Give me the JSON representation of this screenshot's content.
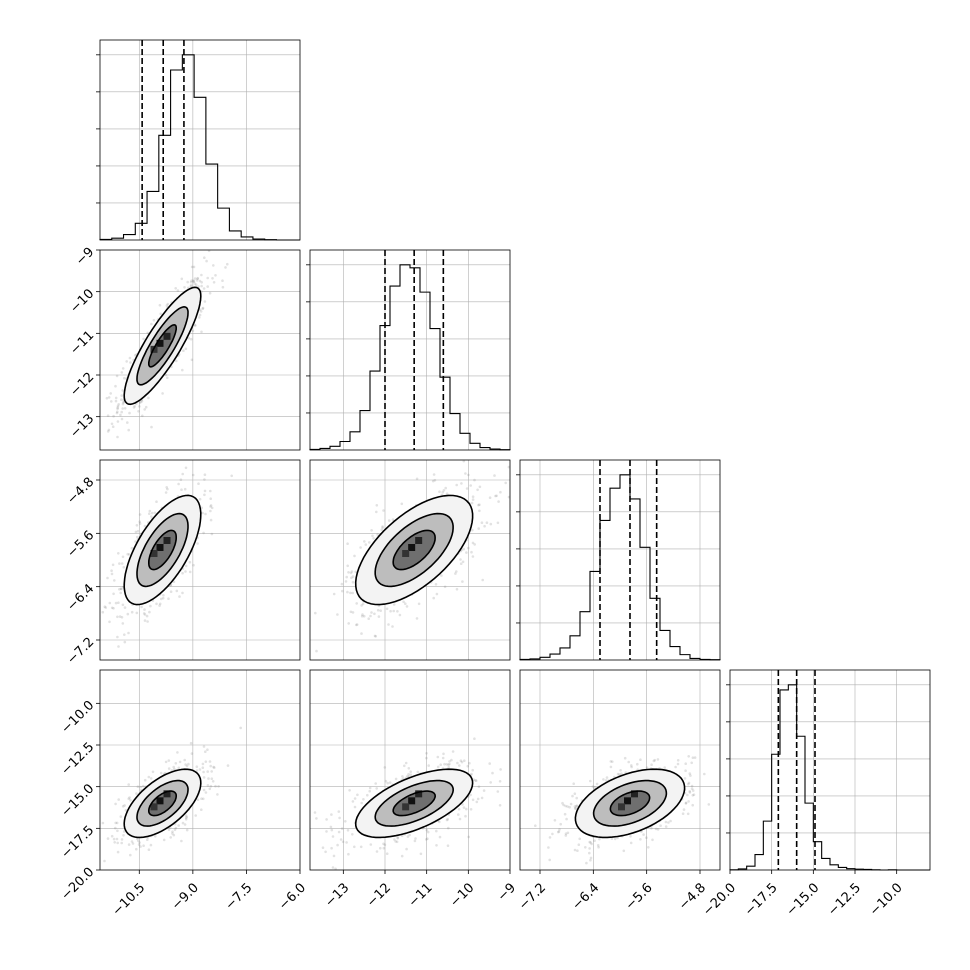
{
  "chart_data": {
    "type": "scatter",
    "title": "",
    "grid": true,
    "parameters": [
      {
        "index": 0,
        "range": [
          -11.6,
          -6.0
        ],
        "ticks": [
          -10.5,
          -9.0,
          -7.5,
          -6.0
        ],
        "tick_labels": [
          "−10.5",
          "−9.0",
          "−7.5",
          "−6.0"
        ],
        "mean": -9.85,
        "sd": 0.55,
        "quantiles": [
          -10.42,
          -9.83,
          -9.25
        ],
        "hist_counts": [
          2,
          6,
          18,
          55,
          160,
          345,
          560,
          610,
          470,
          250,
          105,
          30,
          10,
          3,
          1,
          0,
          0
        ]
      },
      {
        "index": 1,
        "range": [
          -13.8,
          -9.0
        ],
        "ticks": [
          -13,
          -12,
          -11,
          -10,
          -9
        ],
        "tick_labels": [
          "−13",
          "−12",
          "−11",
          "−10",
          "−9"
        ],
        "mean": -11.3,
        "sd": 0.72,
        "quantiles": [
          -12.0,
          -11.3,
          -10.6
        ],
        "hist_counts": [
          2,
          5,
          12,
          28,
          60,
          130,
          260,
          410,
          540,
          610,
          600,
          520,
          400,
          240,
          120,
          55,
          22,
          8,
          3,
          1
        ]
      },
      {
        "index": 2,
        "range": [
          -7.5,
          -4.5
        ],
        "ticks": [
          -7.2,
          -6.4,
          -5.6,
          -4.8
        ],
        "tick_labels": [
          "−7.2",
          "−6.4",
          "−5.6",
          "−4.8"
        ],
        "mean": -5.85,
        "sd": 0.42,
        "quantiles": [
          -6.3,
          -5.85,
          -5.45
        ],
        "hist_counts": [
          2,
          4,
          10,
          22,
          45,
          90,
          180,
          330,
          520,
          640,
          690,
          600,
          420,
          230,
          110,
          50,
          20,
          6,
          2,
          1
        ]
      },
      {
        "index": 3,
        "range": [
          -20.0,
          -8.0
        ],
        "ticks": [
          -20.0,
          -17.5,
          -15.0,
          -12.5,
          -10.0
        ],
        "tick_labels": [
          "−20.0",
          "−17.5",
          "−15.0",
          "−12.5",
          "−10.0"
        ],
        "mean": -16.0,
        "sd": 1.05,
        "quantiles": [
          -17.1,
          -16.0,
          -14.9
        ],
        "hist_counts": [
          1,
          4,
          15,
          60,
          190,
          450,
          700,
          720,
          520,
          260,
          110,
          45,
          20,
          10,
          5,
          3,
          2,
          1,
          0,
          1,
          0,
          0,
          0,
          0
        ]
      }
    ],
    "correlations": {
      "1-0": 0.85,
      "2-0": 0.65,
      "2-1": 0.62,
      "3-0": 0.6,
      "3-1": 0.6,
      "3-2": 0.45
    }
  }
}
